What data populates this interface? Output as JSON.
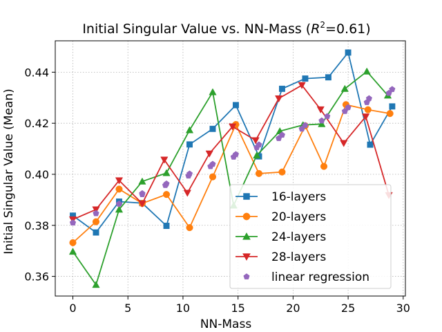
{
  "chart_data": {
    "type": "line",
    "title": "Initial Singular Value vs. NN-Mass (R²=0.61)",
    "title_parts": {
      "main": "Initial Singular Value vs. NN-Mass (",
      "var": "R",
      "sup": "2",
      "rest": "=0.61)"
    },
    "xlabel": "NN-Mass",
    "ylabel": "Initial Singular Value (Mean)",
    "xlim": [
      -1.6,
      30.2
    ],
    "ylim": [
      0.3523,
      0.4523
    ],
    "xticks": [
      0,
      5,
      10,
      15,
      20,
      25,
      30
    ],
    "yticks": [
      0.36,
      0.38,
      0.4,
      0.42,
      0.44
    ],
    "ytick_labels": [
      "0.36",
      "0.38",
      "0.40",
      "0.42",
      "0.44"
    ],
    "grid": true,
    "legend_position": "lower-right",
    "series": [
      {
        "name": "16-layers",
        "color": "#1f77b4",
        "marker": "square",
        "line": true,
        "x": [
          0,
          2.1,
          4.2,
          6.3,
          8.5,
          10.6,
          12.7,
          14.8,
          16.9,
          19.0,
          21.1,
          23.2,
          25.0,
          27.0,
          29.0
        ],
        "y": [
          0.3838,
          0.3772,
          0.3893,
          0.3887,
          0.3798,
          0.4117,
          0.4178,
          0.4271,
          0.407,
          0.4335,
          0.4375,
          0.438,
          0.4477,
          0.4116,
          0.4266
        ]
      },
      {
        "name": "20-layers",
        "color": "#ff7f0e",
        "marker": "circle",
        "line": true,
        "x": [
          0,
          2.1,
          4.2,
          6.3,
          8.5,
          10.6,
          12.7,
          14.8,
          16.9,
          19.0,
          21.1,
          22.8,
          24.8,
          26.8,
          28.8
        ],
        "y": [
          0.3732,
          0.3814,
          0.3942,
          0.3886,
          0.3921,
          0.3791,
          0.399,
          0.4195,
          0.4003,
          0.4009,
          0.419,
          0.4031,
          0.4273,
          0.4253,
          0.4238
        ]
      },
      {
        "name": "24-layers",
        "color": "#2ca02c",
        "marker": "triangle-up",
        "line": true,
        "x": [
          0,
          2.1,
          4.2,
          6.3,
          8.5,
          10.6,
          12.7,
          14.6,
          16.7,
          18.8,
          20.9,
          22.6,
          24.7,
          26.7,
          28.6
        ],
        "y": [
          0.3697,
          0.3567,
          0.3862,
          0.3972,
          0.4005,
          0.4173,
          0.4322,
          0.3878,
          0.4074,
          0.4169,
          0.4193,
          0.4197,
          0.4335,
          0.4403,
          0.4309
        ]
      },
      {
        "name": "28-layers",
        "color": "#d62728",
        "marker": "triangle-down",
        "line": true,
        "x": [
          0,
          2.1,
          4.2,
          6.3,
          8.3,
          10.4,
          12.4,
          14.5,
          16.6,
          18.7,
          20.8,
          22.5,
          24.6,
          26.6,
          28.7
        ],
        "y": [
          0.3823,
          0.3862,
          0.3976,
          0.3885,
          0.4057,
          0.3927,
          0.4081,
          0.4187,
          0.4133,
          0.4297,
          0.4349,
          0.4254,
          0.4122,
          0.4226,
          0.3918
        ]
      },
      {
        "name": "linear regression",
        "color": "#9467bd",
        "marker": "pentagon",
        "line": false,
        "x": [
          0,
          2.1,
          4.2,
          6.3,
          8.4,
          10.5,
          12.5,
          14.6,
          16.7,
          18.7,
          20.8,
          22.6,
          24.7,
          26.7,
          28.7,
          0,
          2.1,
          4.2,
          6.3,
          8.5,
          10.6,
          12.7,
          14.8,
          16.9,
          19.0,
          21.1,
          23.1,
          25.0,
          26.9,
          29.0
        ],
        "y": [
          0.381,
          0.3847,
          0.3884,
          0.3921,
          0.3957,
          0.3994,
          0.4031,
          0.4068,
          0.4105,
          0.4141,
          0.4178,
          0.421,
          0.4247,
          0.4282,
          0.4318,
          0.381,
          0.3847,
          0.3884,
          0.3925,
          0.3963,
          0.4002,
          0.404,
          0.4078,
          0.4116,
          0.4154,
          0.4192,
          0.4227,
          0.4262,
          0.4297,
          0.4333
        ]
      }
    ]
  }
}
